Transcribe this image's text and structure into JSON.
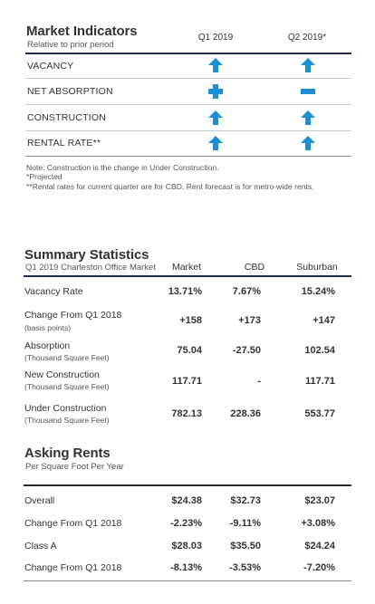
{
  "market_indicators": {
    "title": "Market Indicators",
    "subtitle": "Relative to prior period",
    "columns": [
      "Q1 2019",
      "Q2 2019*"
    ],
    "rows": [
      {
        "label": "VACANCY",
        "q1": "arrow-up-icon",
        "q2": "arrow-up-icon"
      },
      {
        "label": "NET ABSORPTION",
        "q1": "plus-icon",
        "q2": "minus-icon"
      },
      {
        "label": "CONSTRUCTION",
        "q1": "arrow-up-icon",
        "q2": "arrow-up-icon"
      },
      {
        "label": "RENTAL RATE**",
        "q1": "arrow-up-icon",
        "q2": "arrow-up-icon"
      }
    ],
    "notes": [
      "Note: Construction is the change in Under Construction.",
      "*Projected",
      "**Rental rates for current quarter are for CBD. Rent forecast is for metro-wide rents."
    ],
    "icon_color": "#1a8fd4"
  },
  "summary": {
    "title": "Summary Statistics",
    "subtitle": "Q1 2019 Charleston Office Market",
    "columns": [
      "Market",
      "CBD",
      "Suburban"
    ],
    "rows": [
      {
        "label": "Vacancy Rate",
        "sub": "",
        "values": [
          "13.71%",
          "7.67%",
          "15.24%"
        ]
      },
      {
        "label": "Change From Q1 2018",
        "sub": "(basis points)",
        "values": [
          "+158",
          "+173",
          "+147"
        ]
      },
      {
        "label": "Absorption",
        "sub": "(Thousand Square Feet)",
        "values": [
          "75.04",
          "-27.50",
          "102.54"
        ]
      },
      {
        "label": "New Construction",
        "sub": "(Thousand Square Feet)",
        "values": [
          "117.71",
          "-",
          "117.71"
        ]
      },
      {
        "label": "Under Construction",
        "sub": "(Thousand Square Feet)",
        "values": [
          "782.13",
          "228.36",
          "553.77"
        ]
      }
    ]
  },
  "rents": {
    "title": "Asking Rents",
    "subtitle": "Per Square Foot Per Year",
    "rows": [
      {
        "label": "Overall",
        "values": [
          "$24.38",
          "$32.73",
          "$23.07"
        ]
      },
      {
        "label": "Change From Q1 2018",
        "values": [
          "-2.23%",
          "-9.11%",
          "+3.08%"
        ]
      },
      {
        "label": "Class A",
        "values": [
          "$28.03",
          "$35.50",
          "$24.24"
        ]
      },
      {
        "label": "Change From Q1 2018",
        "values": [
          "-8.13%",
          "-3.53%",
          "-7.20%"
        ]
      }
    ]
  }
}
